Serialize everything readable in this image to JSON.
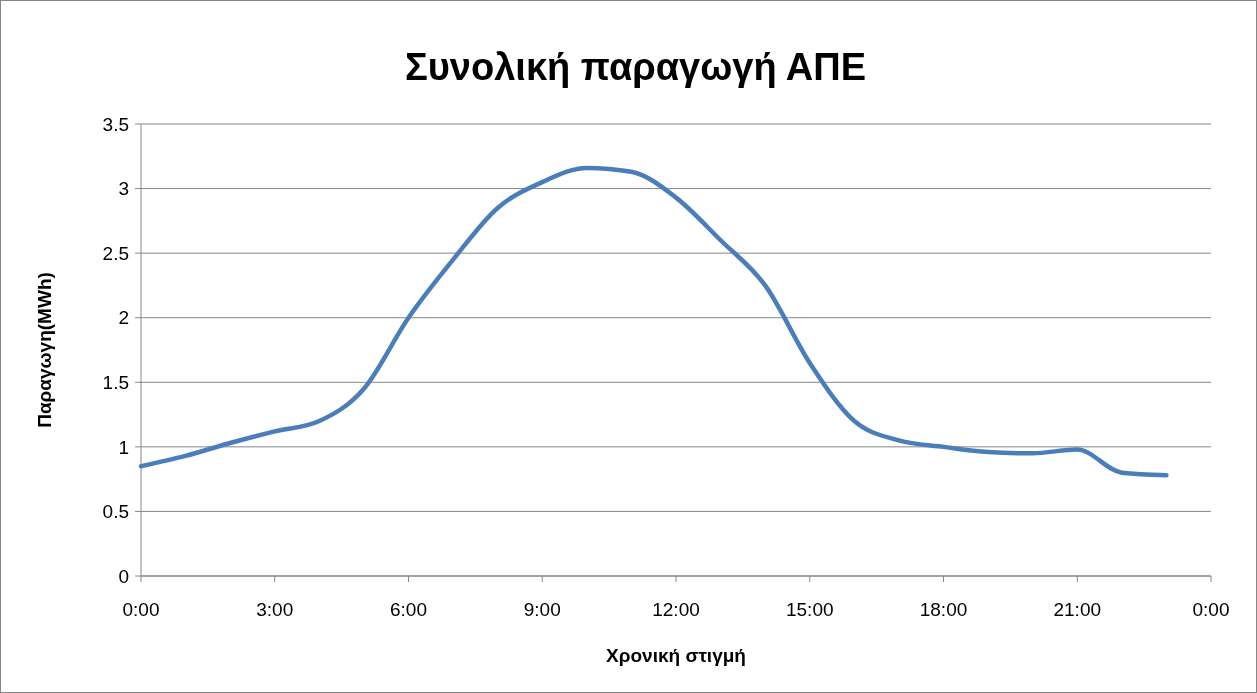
{
  "chart_data": {
    "type": "line",
    "title": "Συνολική παραγωγή ΑΠΕ",
    "xlabel": "Χρονική στιγμή",
    "ylabel": "Παραγωγη(MWh)",
    "x": [
      0,
      1,
      2,
      3,
      4,
      5,
      6,
      7,
      8,
      9,
      10,
      11,
      12,
      13,
      14,
      15,
      16,
      17,
      18,
      19,
      20,
      21,
      22,
      23
    ],
    "series": [
      {
        "color": "#4a7ebb",
        "values": [
          0.85,
          0.93,
          1.03,
          1.12,
          1.2,
          1.45,
          2.0,
          2.45,
          2.85,
          3.05,
          3.16,
          3.13,
          2.93,
          2.6,
          2.25,
          1.65,
          1.2,
          1.05,
          1.0,
          0.96,
          0.95,
          0.98,
          0.8,
          0.78
        ]
      }
    ],
    "xlim": [
      0,
      24
    ],
    "xticks": [
      {
        "value": 0,
        "label": "0:00"
      },
      {
        "value": 3,
        "label": "3:00"
      },
      {
        "value": 6,
        "label": "6:00"
      },
      {
        "value": 9,
        "label": "9:00"
      },
      {
        "value": 12,
        "label": "12:00"
      },
      {
        "value": 15,
        "label": "15:00"
      },
      {
        "value": 18,
        "label": "18:00"
      },
      {
        "value": 21,
        "label": "21:00"
      },
      {
        "value": 24,
        "label": "0:00"
      }
    ],
    "ylim": [
      0,
      3.5
    ],
    "yticks": [
      0,
      0.5,
      1,
      1.5,
      2,
      2.5,
      3,
      3.5
    ],
    "grid": "y",
    "marker": "none",
    "line_style": "solid"
  }
}
